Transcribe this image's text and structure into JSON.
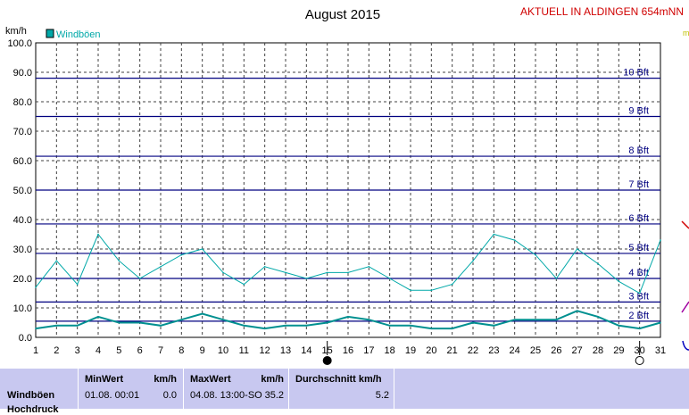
{
  "chart_data": {
    "type": "line",
    "title": "August 2015",
    "station": "AKTUELL IN ALDINGEN 654mNN",
    "ylabel": "km/h",
    "ylim": [
      0,
      100
    ],
    "yticks": [
      "0.0",
      "10.0",
      "20.0",
      "30.0",
      "40.0",
      "50.0",
      "60.0",
      "70.0",
      "80.0",
      "90.0",
      "100.0"
    ],
    "x": [
      1,
      2,
      3,
      4,
      5,
      6,
      7,
      8,
      9,
      10,
      11,
      12,
      13,
      14,
      15,
      16,
      17,
      18,
      19,
      20,
      21,
      22,
      23,
      24,
      25,
      26,
      27,
      28,
      29,
      30,
      31
    ],
    "xticks": [
      "1",
      "2",
      "3",
      "4",
      "5",
      "6",
      "7",
      "8",
      "9",
      "10",
      "11",
      "12",
      "13",
      "14",
      "15",
      "16",
      "17",
      "18",
      "19",
      "20",
      "21",
      "22",
      "23",
      "24",
      "25",
      "26",
      "27",
      "28",
      "29",
      "30",
      "31"
    ],
    "legend": "Windböen",
    "series": [
      {
        "name": "Windböen",
        "color": "#00a8a8",
        "values": [
          17,
          26,
          18,
          35,
          26,
          20,
          24,
          28,
          30,
          22,
          18,
          24,
          22,
          20,
          22,
          22,
          24,
          20,
          16,
          16,
          18,
          26,
          35,
          33,
          28,
          20,
          30,
          25,
          19,
          15,
          33
        ]
      },
      {
        "name": "",
        "color": "#009090",
        "values": [
          3,
          4,
          4,
          7,
          5,
          5,
          4,
          6,
          8,
          6,
          4,
          3,
          4,
          4,
          5,
          7,
          6,
          4,
          4,
          3,
          3,
          5,
          4,
          6,
          6,
          6,
          9,
          7,
          4,
          3,
          5
        ]
      }
    ],
    "beaufort": [
      {
        "label": "2 Bft",
        "value": 5.5
      },
      {
        "label": "3 Bft",
        "value": 12
      },
      {
        "label": "4 Bft",
        "value": 20
      },
      {
        "label": "5 Bft",
        "value": 28.5
      },
      {
        "label": "6 Bft",
        "value": 38.5
      },
      {
        "label": "7 Bft",
        "value": 50
      },
      {
        "label": "8 Bft",
        "value": 61.5
      },
      {
        "label": "9 Bft",
        "value": 75
      },
      {
        "label": "10 Bft",
        "value": 88
      }
    ],
    "moon_phases": [
      {
        "day": 15,
        "phase": "new"
      },
      {
        "day": 30,
        "phase": "full"
      }
    ],
    "grid": true
  },
  "stats": {
    "min_header": "MinWert",
    "min_unit": "km/h",
    "max_header": "MaxWert",
    "max_unit": "km/h",
    "avg_header": "Durchschnitt km/h",
    "row_label": "Windböen",
    "row_label2": "Hochdruck",
    "min_time": "01.08.  00:01",
    "min_value": "0.0",
    "max_time": "04.08.  13:00-SO",
    "max_value": "35.2",
    "avg_value": "5.2"
  },
  "colors": {
    "grid": "#404040",
    "beaufort_line": "#000080",
    "series": "#00a8a8",
    "panel": "#c8c8f0"
  }
}
